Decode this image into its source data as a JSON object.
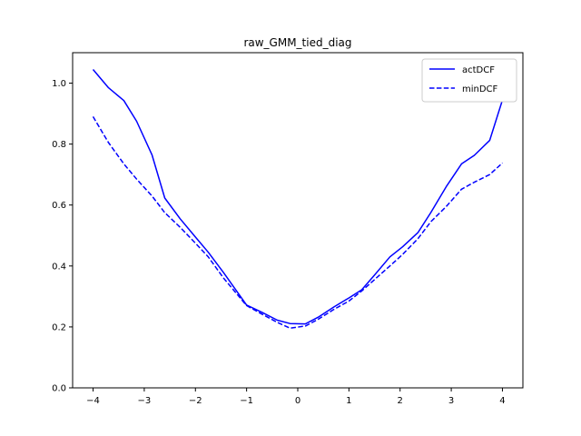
{
  "chart_data": {
    "type": "line",
    "title": "raw_GMM_tied_diag",
    "xlabel": "",
    "ylabel": "",
    "xlim": [
      -4.4,
      4.4
    ],
    "ylim": [
      0.0,
      1.1
    ],
    "xticks": [
      -4,
      -3,
      -2,
      -1,
      0,
      1,
      2,
      3,
      4
    ],
    "xtick_labels": [
      "−4",
      "−3",
      "−2",
      "−1",
      "0",
      "1",
      "2",
      "3",
      "4"
    ],
    "yticks": [
      0.0,
      0.2,
      0.4,
      0.6,
      0.8,
      1.0
    ],
    "ytick_labels": [
      "0.0",
      "0.2",
      "0.4",
      "0.6",
      "0.8",
      "1.0"
    ],
    "grid": false,
    "legend_position": "top-right",
    "series": [
      {
        "name": "actDCF",
        "color": "#0000ff",
        "style": "solid",
        "x": [
          -4.0,
          -3.7,
          -3.4,
          -3.15,
          -2.85,
          -2.6,
          -2.3,
          -2.0,
          -1.75,
          -1.45,
          -1.0,
          -0.7,
          -0.4,
          -0.15,
          0.15,
          0.4,
          0.7,
          1.0,
          1.25,
          1.5,
          1.8,
          2.05,
          2.35,
          2.6,
          2.9,
          3.2,
          3.45,
          3.75,
          4.0
        ],
        "y": [
          1.045,
          0.985,
          0.943,
          0.875,
          0.765,
          0.623,
          0.555,
          0.495,
          0.445,
          0.378,
          0.272,
          0.248,
          0.222,
          0.211,
          0.21,
          0.232,
          0.265,
          0.295,
          0.322,
          0.37,
          0.43,
          0.463,
          0.51,
          0.575,
          0.66,
          0.735,
          0.763,
          0.812,
          0.945
        ]
      },
      {
        "name": "minDCF",
        "color": "#0000ff",
        "style": "dashed",
        "x": [
          -4.0,
          -3.7,
          -3.4,
          -3.15,
          -2.85,
          -2.6,
          -2.3,
          -2.0,
          -1.75,
          -1.45,
          -1.0,
          -0.7,
          -0.4,
          -0.15,
          0.15,
          0.4,
          0.7,
          1.0,
          1.25,
          1.5,
          1.8,
          2.05,
          2.35,
          2.6,
          2.9,
          3.2,
          3.45,
          3.75,
          4.0
        ],
        "y": [
          0.89,
          0.805,
          0.735,
          0.685,
          0.63,
          0.575,
          0.527,
          0.475,
          0.43,
          0.36,
          0.27,
          0.242,
          0.215,
          0.196,
          0.203,
          0.225,
          0.257,
          0.285,
          0.318,
          0.355,
          0.4,
          0.438,
          0.49,
          0.545,
          0.595,
          0.652,
          0.675,
          0.7,
          0.738
        ]
      }
    ]
  }
}
